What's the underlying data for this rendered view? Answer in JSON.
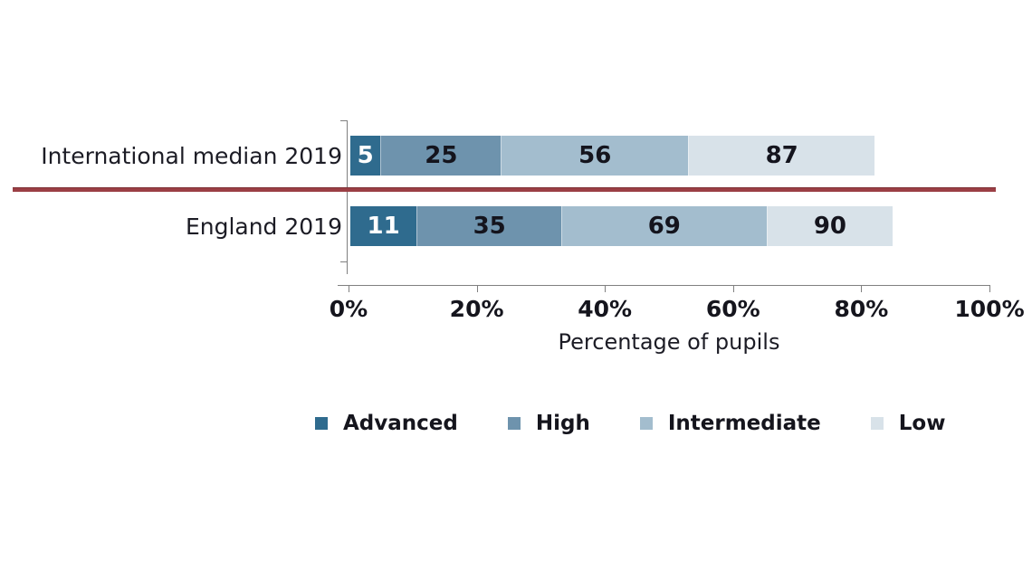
{
  "chart_data": {
    "type": "bar",
    "variant": "horizontal_stacked",
    "values_are_cumulative": true,
    "xlabel": "Percentage of pupils",
    "x_tick_labels": [
      "0%",
      "20%",
      "40%",
      "60%",
      "80%",
      "100%"
    ],
    "xlim": [
      0,
      100
    ],
    "grid": false,
    "legend_position": "bottom",
    "categories": [
      "International median 2019",
      "England 2019"
    ],
    "series": [
      {
        "name": "Advanced",
        "color": "#2f6b8e",
        "label_color": "#ffffff",
        "cumulative_values": [
          5,
          11
        ]
      },
      {
        "name": "High",
        "color": "#6e93ad",
        "label_color": "#14141d",
        "cumulative_values": [
          25,
          35
        ]
      },
      {
        "name": "Intermediate",
        "color": "#a3bdce",
        "label_color": "#14141d",
        "cumulative_values": [
          56,
          69
        ]
      },
      {
        "name": "Low",
        "color": "#d8e2e9",
        "label_color": "#14141d",
        "cumulative_values": [
          87,
          90
        ]
      }
    ],
    "colors": {
      "axis": "#808080",
      "reference_line": "#9b3f45",
      "text": "#1c1c25",
      "background": "#ffffff"
    }
  }
}
